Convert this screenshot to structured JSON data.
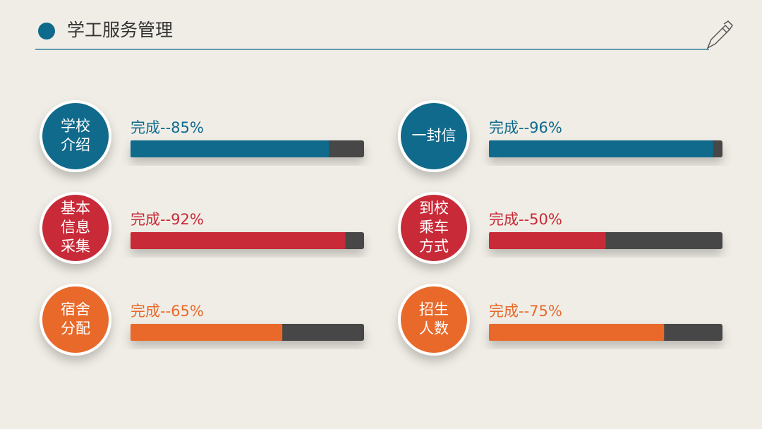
{
  "header": {
    "title": "学工服务管理"
  },
  "range": [
    0,
    100
  ],
  "items": [
    {
      "name": [
        "学校",
        "介绍"
      ],
      "label": "完成--85%",
      "value": 85,
      "color": "#0f6a8c"
    },
    {
      "name": [
        "一封信"
      ],
      "label": "完成--96%",
      "value": 96,
      "color": "#0f6a8c"
    },
    {
      "name": [
        "基本",
        "信息",
        "采集"
      ],
      "label": "完成--92%",
      "value": 92,
      "color": "#c82a38"
    },
    {
      "name": [
        "到校",
        "乘车",
        "方式"
      ],
      "label": "完成--50%",
      "value": 50,
      "color": "#c82a38"
    },
    {
      "name": [
        "宿舍",
        "分配"
      ],
      "label": "完成--65%",
      "value": 65,
      "color": "#e8692a"
    },
    {
      "name": [
        "招生",
        "人数"
      ],
      "label": "完成--75%",
      "value": 75,
      "color": "#e8692a"
    }
  ]
}
